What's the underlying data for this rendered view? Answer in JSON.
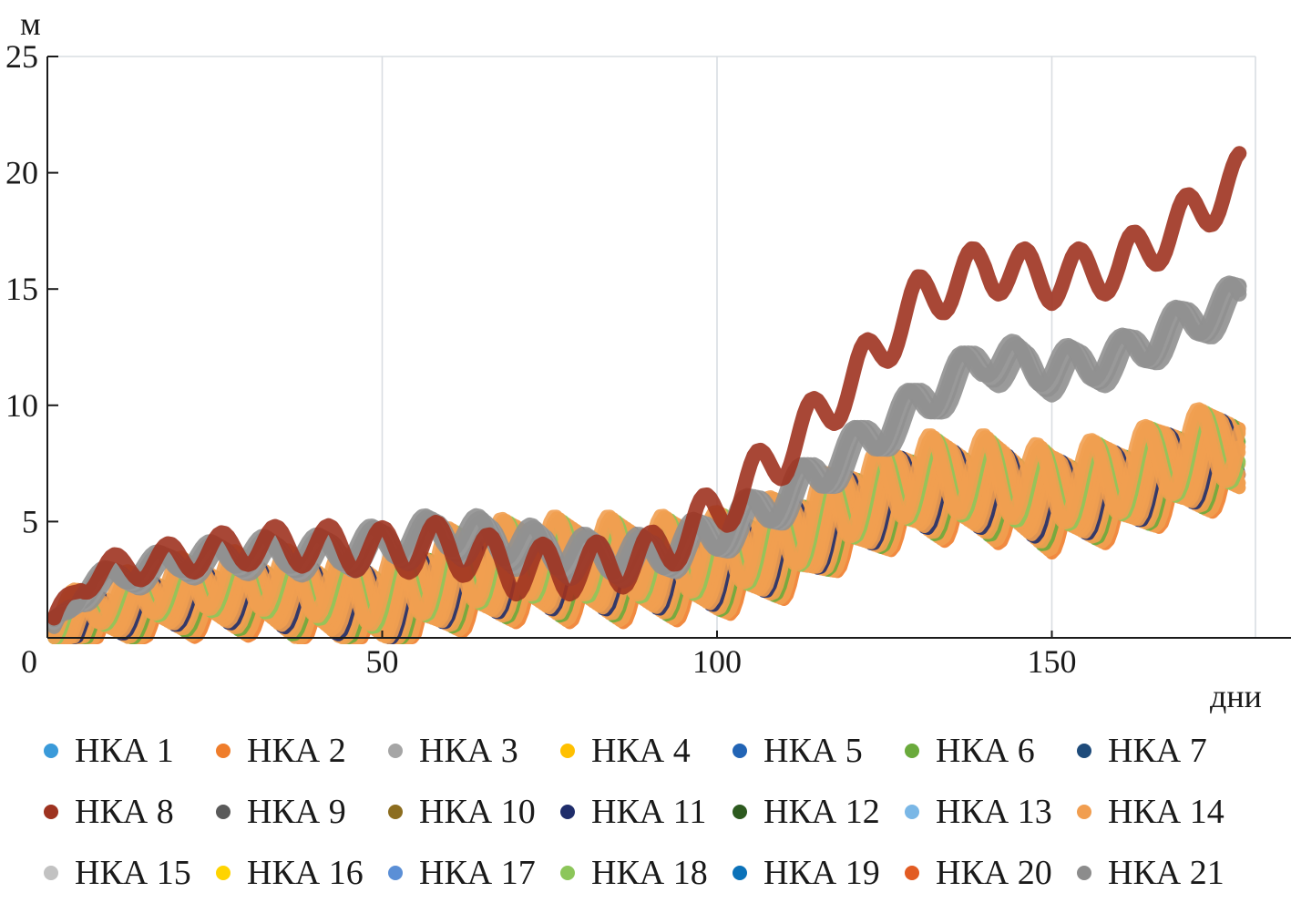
{
  "chart_data": {
    "type": "scatter",
    "title": "",
    "xlabel": "дни",
    "ylabel": "м",
    "xlim": [
      0,
      180
    ],
    "ylim": [
      0,
      25
    ],
    "xticks": [
      "0",
      "50",
      "100",
      "150"
    ],
    "yticks": [
      "5",
      "10",
      "15",
      "20",
      "25"
    ],
    "grid": "vertical",
    "legend_position": "bottom",
    "series": [
      {
        "name": "НКА 1",
        "color": "#3a9ad9",
        "group": "mid"
      },
      {
        "name": "НКА 2",
        "color": "#ef7d2b",
        "group": "low"
      },
      {
        "name": "НКА 3",
        "color": "#a5a5a5",
        "group": "mid"
      },
      {
        "name": "НКА 4",
        "color": "#ffc000",
        "group": "low"
      },
      {
        "name": "НКА 5",
        "color": "#2264b5",
        "group": "low"
      },
      {
        "name": "НКА 6",
        "color": "#6aaa3c",
        "group": "low"
      },
      {
        "name": "НКА 7",
        "color": "#1e4b7a",
        "group": "low"
      },
      {
        "name": "НКА 8",
        "color": "#9e3320",
        "group": "high"
      },
      {
        "name": "НКА 9",
        "color": "#5a5a5a",
        "group": "mid"
      },
      {
        "name": "НКА 10",
        "color": "#8c6d1f",
        "group": "low"
      },
      {
        "name": "НКА 11",
        "color": "#1f2d6b",
        "group": "low"
      },
      {
        "name": "НКА 12",
        "color": "#2d5a1f",
        "group": "low"
      },
      {
        "name": "НКА 13",
        "color": "#7ab7e6",
        "group": "low"
      },
      {
        "name": "НКА 14",
        "color": "#f19e50",
        "group": "low"
      },
      {
        "name": "НКА 15",
        "color": "#c2c2c2",
        "group": "mid"
      },
      {
        "name": "НКА 16",
        "color": "#ffd400",
        "group": "low"
      },
      {
        "name": "НКА 17",
        "color": "#5b8fd6",
        "group": "low"
      },
      {
        "name": "НКА 18",
        "color": "#8cc65a",
        "group": "low"
      },
      {
        "name": "НКА 19",
        "color": "#0b72b9",
        "group": "low"
      },
      {
        "name": "НКА 20",
        "color": "#e25c23",
        "group": "low"
      },
      {
        "name": "НКА 21",
        "color": "#8c8c8c",
        "group": "mid"
      }
    ],
    "envelopes": {
      "high": {
        "color": "#9e3320",
        "x": [
          0,
          5,
          10,
          20,
          30,
          40,
          50,
          60,
          70,
          80,
          90,
          100,
          110,
          120,
          130,
          140,
          150,
          160,
          170,
          178
        ],
        "y": [
          0,
          2.5,
          3,
          3.5,
          4,
          4,
          3.8,
          4,
          3,
          3,
          3.5,
          5.5,
          8,
          11,
          14.5,
          16,
          15.5,
          16,
          18,
          19.8
        ],
        "amplitude": 0.9
      },
      "mid": {
        "color": "#909090",
        "x": [
          0,
          5,
          10,
          20,
          30,
          40,
          50,
          60,
          70,
          80,
          90,
          100,
          110,
          120,
          130,
          140,
          150,
          160,
          170,
          178
        ],
        "y": [
          0,
          2,
          2.6,
          3.3,
          3.6,
          3.6,
          4,
          4.5,
          4,
          3.5,
          3.5,
          4.5,
          6,
          8,
          10,
          12,
          11.5,
          12,
          13.5,
          14.5
        ],
        "amplitude": 0.7
      },
      "low": {
        "color": "#f19e50",
        "x": [
          0,
          5,
          10,
          20,
          30,
          40,
          50,
          60,
          70,
          80,
          90,
          100,
          110,
          120,
          130,
          140,
          150,
          160,
          170,
          178
        ],
        "y": [
          0,
          0.8,
          1.2,
          1.8,
          2,
          1.8,
          1.5,
          2.5,
          3,
          3,
          3,
          3.2,
          4,
          5.5,
          6.5,
          6.5,
          6,
          6.5,
          7.5,
          8
        ],
        "amplitude": 1.4
      }
    }
  }
}
